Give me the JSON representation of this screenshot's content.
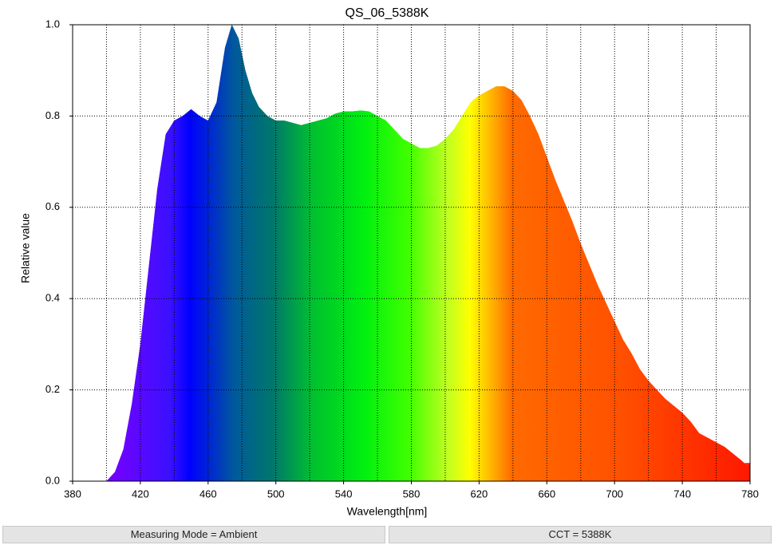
{
  "chart_data": {
    "type": "area",
    "title": "QS_06_5388K",
    "xlabel": "Wavelength[nm]",
    "ylabel": "Relative value",
    "x": [
      400,
      405,
      410,
      415,
      420,
      425,
      430,
      435,
      440,
      445,
      450,
      455,
      460,
      465,
      470,
      474,
      478,
      482,
      486,
      490,
      495,
      500,
      505,
      510,
      515,
      520,
      525,
      530,
      535,
      540,
      545,
      550,
      555,
      560,
      565,
      570,
      575,
      580,
      585,
      590,
      595,
      600,
      605,
      610,
      615,
      620,
      625,
      630,
      635,
      640,
      645,
      650,
      655,
      660,
      665,
      670,
      675,
      680,
      685,
      690,
      695,
      700,
      705,
      710,
      715,
      720,
      725,
      730,
      735,
      740,
      745,
      750,
      755,
      760,
      765,
      770,
      775,
      778,
      780
    ],
    "values": [
      0,
      0.02,
      0.07,
      0.17,
      0.3,
      0.47,
      0.64,
      0.76,
      0.79,
      0.8,
      0.815,
      0.8,
      0.79,
      0.83,
      0.95,
      1.0,
      0.97,
      0.9,
      0.85,
      0.82,
      0.8,
      0.79,
      0.79,
      0.785,
      0.78,
      0.785,
      0.79,
      0.795,
      0.805,
      0.81,
      0.81,
      0.812,
      0.81,
      0.8,
      0.79,
      0.77,
      0.75,
      0.74,
      0.73,
      0.73,
      0.735,
      0.75,
      0.77,
      0.8,
      0.83,
      0.845,
      0.855,
      0.865,
      0.865,
      0.855,
      0.835,
      0.8,
      0.76,
      0.71,
      0.66,
      0.615,
      0.57,
      0.52,
      0.475,
      0.43,
      0.39,
      0.35,
      0.31,
      0.28,
      0.245,
      0.22,
      0.2,
      0.18,
      0.165,
      0.15,
      0.13,
      0.105,
      0.095,
      0.085,
      0.075,
      0.06,
      0.045,
      0.035,
      0.04
    ],
    "xlim": [
      380,
      780
    ],
    "ylim": [
      0,
      1
    ],
    "xticks": [
      380,
      420,
      460,
      500,
      540,
      580,
      620,
      660,
      700,
      740,
      780
    ],
    "xgrid": [
      400,
      440,
      480,
      520,
      560,
      600,
      640,
      680,
      720,
      760
    ],
    "yticks": [
      {
        "value": 0,
        "label": "0.0"
      },
      {
        "value": 0.2,
        "label": "0.2"
      },
      {
        "value": 0.4,
        "label": "0.4"
      },
      {
        "value": 0.6,
        "label": "0.6"
      },
      {
        "value": 0.8,
        "label": "0.8"
      },
      {
        "value": 1,
        "label": "1.0"
      }
    ],
    "grid": true
  },
  "status_bar": [
    "Measuring Mode = Ambient",
    "CCT = 5388K"
  ]
}
